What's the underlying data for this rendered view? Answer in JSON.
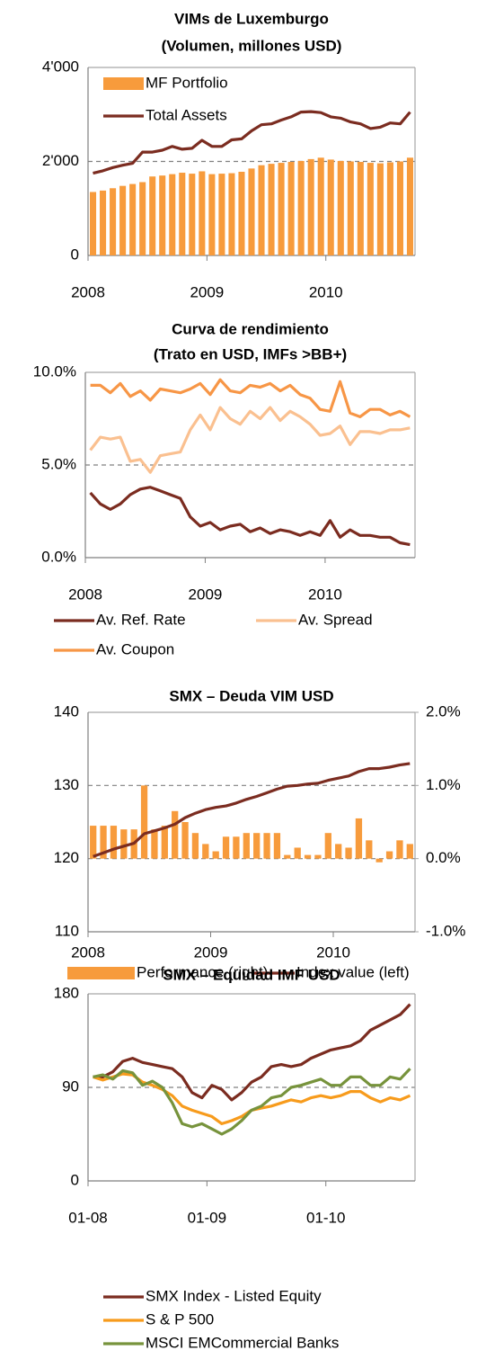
{
  "chart_data": [
    {
      "type": "combo",
      "title": "VIMs de Luxemburgo",
      "subtitle": "(Volumen, millones USD)",
      "categories": [
        "2008",
        null,
        null,
        null,
        null,
        null,
        null,
        null,
        null,
        null,
        null,
        null,
        "2009",
        null,
        null,
        null,
        null,
        null,
        null,
        null,
        null,
        null,
        null,
        null,
        "2010",
        null,
        null,
        null,
        null,
        null,
        null,
        null,
        null
      ],
      "series": [
        {
          "name": "MF Portfolio",
          "kind": "bar",
          "color": "#f79b3c",
          "values": [
            1350,
            1380,
            1430,
            1480,
            1520,
            1560,
            1680,
            1700,
            1730,
            1760,
            1740,
            1790,
            1730,
            1740,
            1750,
            1780,
            1850,
            1920,
            1950,
            1970,
            1990,
            2010,
            2050,
            2080,
            2040,
            2010,
            2000,
            1990,
            1970,
            1960,
            1980,
            2000,
            2080
          ]
        },
        {
          "name": "Total Assets",
          "kind": "line",
          "color": "#7b2c20",
          "values": [
            1750,
            1800,
            1870,
            1920,
            1960,
            2200,
            2200,
            2240,
            2320,
            2260,
            2280,
            2450,
            2320,
            2320,
            2460,
            2480,
            2650,
            2780,
            2800,
            2880,
            2950,
            3050,
            3060,
            3040,
            2950,
            2920,
            2840,
            2800,
            2700,
            2730,
            2820,
            2800,
            3050
          ]
        }
      ],
      "ylim": [
        0,
        4000
      ],
      "yticks": [
        0,
        {
          "value": 2000,
          "label": "2'000"
        },
        {
          "value": 4000,
          "label": "4'000"
        }
      ],
      "grid": true,
      "legend": "top-left"
    },
    {
      "type": "line",
      "title": "Curva de rendimiento",
      "subtitle": "(Trato en USD, IMFs >BB+)",
      "categories": [
        "2008",
        null,
        null,
        null,
        null,
        null,
        null,
        null,
        null,
        null,
        null,
        null,
        "2009",
        null,
        null,
        null,
        null,
        null,
        null,
        null,
        null,
        null,
        null,
        null,
        "2010",
        null,
        null,
        null,
        null,
        null,
        null,
        null,
        null
      ],
      "series": [
        {
          "name": "Av. Ref. Rate",
          "color": "#7b2c20",
          "values": [
            3.5,
            2.9,
            2.6,
            2.9,
            3.4,
            3.7,
            3.8,
            3.6,
            3.4,
            3.2,
            2.2,
            1.7,
            1.9,
            1.5,
            1.7,
            1.8,
            1.4,
            1.6,
            1.3,
            1.5,
            1.4,
            1.2,
            1.4,
            1.2,
            2.0,
            1.1,
            1.5,
            1.2,
            1.2,
            1.1,
            1.1,
            0.8,
            0.7
          ]
        },
        {
          "name": "Av. Spread",
          "color": "#fac090",
          "values": [
            5.8,
            6.5,
            6.4,
            6.5,
            5.2,
            5.3,
            4.6,
            5.5,
            5.6,
            5.7,
            6.9,
            7.7,
            6.9,
            8.1,
            7.5,
            7.2,
            7.9,
            7.5,
            8.1,
            7.4,
            7.9,
            7.6,
            7.2,
            6.6,
            6.7,
            7.1,
            6.1,
            6.8,
            6.8,
            6.7,
            6.9,
            6.9,
            7.0
          ]
        },
        {
          "name": "Av. Coupon",
          "color": "#f79646",
          "values": [
            9.3,
            9.3,
            8.9,
            9.4,
            8.7,
            9.0,
            8.5,
            9.1,
            9.0,
            8.9,
            9.1,
            9.4,
            8.8,
            9.6,
            9.0,
            8.9,
            9.3,
            9.2,
            9.4,
            9.0,
            9.3,
            8.8,
            8.6,
            8.0,
            7.9,
            9.5,
            7.8,
            7.6,
            8.0,
            8.0,
            7.7,
            7.9,
            7.6
          ]
        }
      ],
      "ylim": [
        0,
        10
      ],
      "yticks": [
        {
          "value": 0,
          "label": "0.0%"
        },
        {
          "value": 5,
          "label": "5.0%"
        },
        {
          "value": 10,
          "label": "10.0%"
        }
      ],
      "grid": true,
      "legend": "bottom"
    },
    {
      "type": "combo",
      "title": "SMX – Deuda VIM USD",
      "categories": [
        "2008",
        null,
        null,
        null,
        null,
        null,
        null,
        null,
        null,
        null,
        null,
        null,
        "2009",
        null,
        null,
        null,
        null,
        null,
        null,
        null,
        null,
        null,
        null,
        null,
        "2010",
        null,
        null,
        null,
        null,
        null,
        null,
        null
      ],
      "series": [
        {
          "name": "Performance (right)",
          "kind": "bar",
          "axis": "y2",
          "color": "#f79b3c",
          "values": [
            0.45,
            0.45,
            0.45,
            0.4,
            0.4,
            1.0,
            0.4,
            0.45,
            0.65,
            0.5,
            0.35,
            0.2,
            0.1,
            0.3,
            0.3,
            0.35,
            0.35,
            0.35,
            0.35,
            0.05,
            0.15,
            0.05,
            0.05,
            0.35,
            0.2,
            0.15,
            0.55,
            0.25,
            -0.05,
            0.1,
            0.25,
            0.2
          ]
        },
        {
          "name": "Index value (left)",
          "kind": "line",
          "color": "#7b2c20",
          "values": [
            120.3,
            120.8,
            121.3,
            121.7,
            122.1,
            123.4,
            123.8,
            124.2,
            124.7,
            125.6,
            126.2,
            126.7,
            127.0,
            127.2,
            127.6,
            128.1,
            128.5,
            129.0,
            129.5,
            129.9,
            130.0,
            130.2,
            130.3,
            130.7,
            131.0,
            131.3,
            131.9,
            132.3,
            132.3,
            132.5,
            132.8,
            133.0
          ]
        }
      ],
      "ylim": [
        110,
        140
      ],
      "yticks": [
        110,
        120,
        130,
        140
      ],
      "y2lim": [
        -1,
        2
      ],
      "y2ticks": [
        {
          "value": -1,
          "label": "-1.0%"
        },
        {
          "value": 0,
          "label": "0.0%"
        },
        {
          "value": 1,
          "label": "1.0%"
        },
        {
          "value": 2,
          "label": "2.0%"
        }
      ],
      "grid": true,
      "legend": "bottom"
    },
    {
      "type": "line",
      "title": "SMX – Equidad IMF USD",
      "categories": [
        "01-08",
        null,
        null,
        null,
        null,
        null,
        null,
        null,
        null,
        null,
        null,
        null,
        "01-09",
        null,
        null,
        null,
        null,
        null,
        null,
        null,
        null,
        null,
        null,
        null,
        "01-10",
        null,
        null,
        null,
        null,
        null,
        null,
        null,
        null
      ],
      "series": [
        {
          "name": "SMX Index - Listed Equity",
          "color": "#7b2c20",
          "values": [
            100,
            100,
            105,
            115,
            118,
            114,
            112,
            110,
            108,
            100,
            85,
            80,
            92,
            88,
            78,
            85,
            95,
            100,
            110,
            112,
            110,
            112,
            118,
            122,
            126,
            128,
            130,
            135,
            145,
            150,
            155,
            160,
            170
          ]
        },
        {
          "name": "S & P 500",
          "color": "#f79b1c",
          "values": [
            100,
            97,
            100,
            103,
            102,
            95,
            92,
            88,
            82,
            72,
            68,
            65,
            62,
            55,
            58,
            62,
            68,
            70,
            72,
            75,
            78,
            76,
            80,
            82,
            80,
            82,
            86,
            86,
            80,
            76,
            80,
            78,
            82
          ]
        },
        {
          "name": "MSCI EMCommercial Banks",
          "color": "#77933c",
          "values": [
            100,
            102,
            98,
            106,
            104,
            92,
            96,
            90,
            75,
            55,
            52,
            55,
            50,
            45,
            50,
            58,
            68,
            72,
            80,
            82,
            90,
            92,
            95,
            98,
            92,
            92,
            100,
            100,
            92,
            92,
            100,
            98,
            108
          ]
        }
      ],
      "ylim": [
        0,
        180
      ],
      "yticks": [
        0,
        90,
        180
      ],
      "grid": true,
      "legend": "bottom"
    }
  ]
}
